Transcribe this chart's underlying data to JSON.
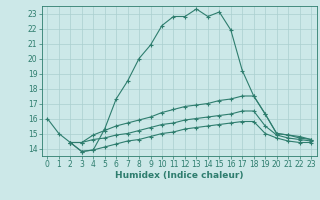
{
  "line1_x": [
    0,
    1,
    2,
    3,
    4,
    5,
    6,
    7,
    8,
    9,
    10,
    11,
    12,
    13,
    14,
    15,
    16,
    17,
    18,
    19,
    20,
    21,
    22,
    23
  ],
  "line1_y": [
    16.0,
    15.0,
    14.4,
    13.8,
    13.9,
    15.3,
    17.3,
    18.5,
    20.0,
    20.9,
    22.2,
    22.8,
    22.8,
    23.3,
    22.8,
    23.1,
    21.9,
    19.2,
    17.5,
    16.3,
    15.0,
    14.9,
    14.7,
    14.6
  ],
  "line2_x": [
    2,
    3,
    4,
    5,
    6,
    7,
    8,
    9,
    10,
    11,
    12,
    13,
    14,
    15,
    16,
    17,
    18,
    19,
    20,
    21,
    22,
    23
  ],
  "line2_y": [
    14.4,
    14.4,
    14.9,
    15.2,
    15.5,
    15.7,
    15.9,
    16.1,
    16.4,
    16.6,
    16.8,
    16.9,
    17.0,
    17.2,
    17.3,
    17.5,
    17.5,
    16.3,
    15.0,
    14.9,
    14.8,
    14.6
  ],
  "line3_x": [
    2,
    3,
    4,
    5,
    6,
    7,
    8,
    9,
    10,
    11,
    12,
    13,
    14,
    15,
    16,
    17,
    18,
    19,
    20,
    21,
    22,
    23
  ],
  "line3_y": [
    14.4,
    14.4,
    14.6,
    14.7,
    14.9,
    15.0,
    15.2,
    15.4,
    15.6,
    15.7,
    15.9,
    16.0,
    16.1,
    16.2,
    16.3,
    16.5,
    16.5,
    15.5,
    14.9,
    14.7,
    14.6,
    14.5
  ],
  "line4_x": [
    2,
    3,
    4,
    5,
    6,
    7,
    8,
    9,
    10,
    11,
    12,
    13,
    14,
    15,
    16,
    17,
    18,
    19,
    20,
    21,
    22,
    23
  ],
  "line4_y": [
    14.4,
    13.8,
    13.9,
    14.1,
    14.3,
    14.5,
    14.6,
    14.8,
    15.0,
    15.1,
    15.3,
    15.4,
    15.5,
    15.6,
    15.7,
    15.8,
    15.8,
    15.0,
    14.7,
    14.5,
    14.4,
    14.4
  ],
  "line_color": "#2e7d6e",
  "bg_color": "#cce8e8",
  "grid_color": "#aacfcf",
  "xlabel": "Humidex (Indice chaleur)",
  "ylim": [
    13.5,
    23.5
  ],
  "xlim": [
    -0.5,
    23.5
  ],
  "yticks": [
    14,
    15,
    16,
    17,
    18,
    19,
    20,
    21,
    22,
    23
  ],
  "xticks": [
    0,
    1,
    2,
    3,
    4,
    5,
    6,
    7,
    8,
    9,
    10,
    11,
    12,
    13,
    14,
    15,
    16,
    17,
    18,
    19,
    20,
    21,
    22,
    23
  ],
  "marker": "+",
  "markersize": 3,
  "linewidth": 0.8,
  "tick_fontsize": 5.5,
  "xlabel_fontsize": 6.5
}
